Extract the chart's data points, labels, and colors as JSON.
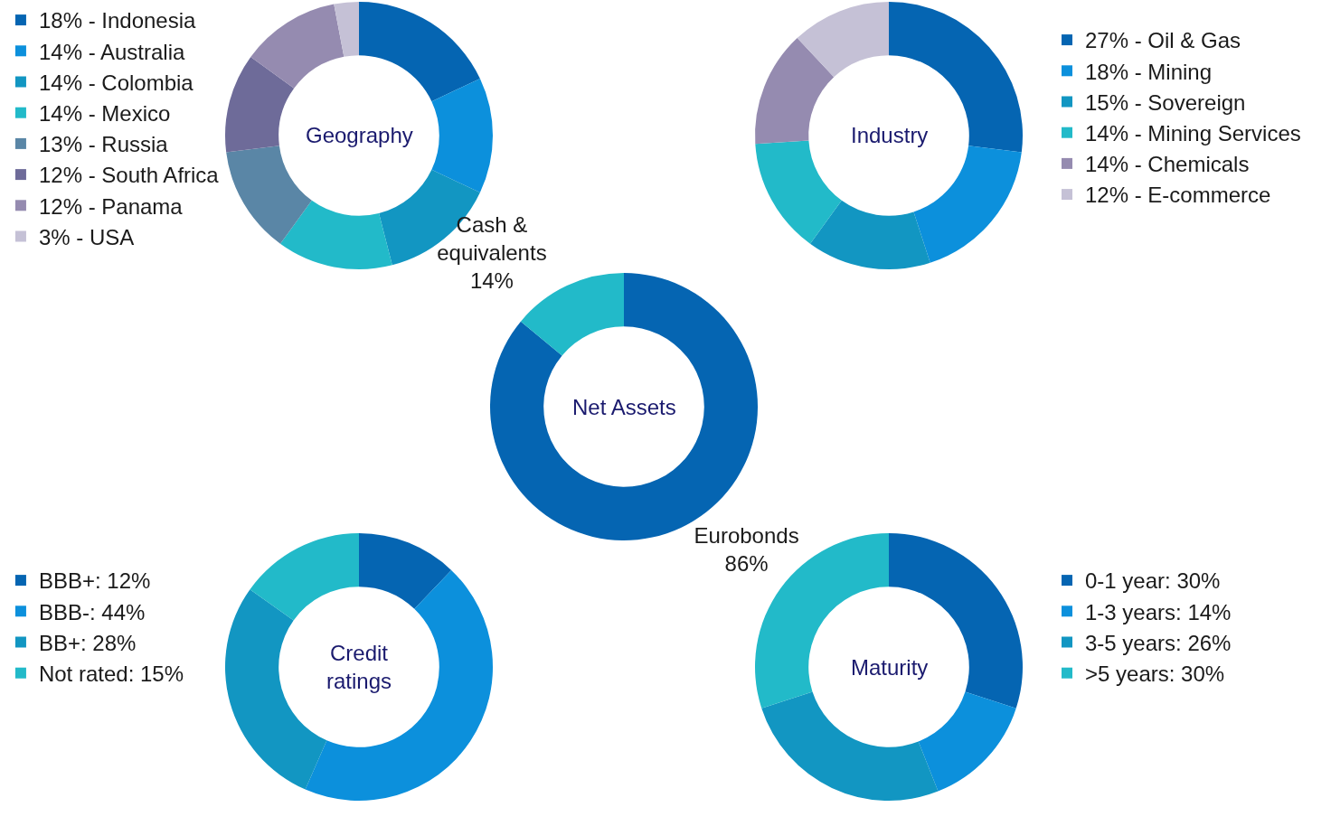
{
  "chart_data": [
    {
      "type": "donut",
      "title": "Geography",
      "legend": "left",
      "categories": [
        "18% - Indonesia",
        "14% - Australia",
        "14% - Colombia",
        "14% - Mexico",
        "13% - Russia",
        "12% - South Africa",
        "12% - Panama",
        "3% - USA"
      ],
      "values": [
        18,
        14,
        14,
        14,
        13,
        12,
        12,
        3
      ],
      "colors": [
        "#0565b2",
        "#0c90dc",
        "#1296c2",
        "#22bac9",
        "#5a86a6",
        "#6e6b99",
        "#958bb0",
        "#c5c1d6"
      ]
    },
    {
      "type": "donut",
      "title": "Industry",
      "legend": "right",
      "categories": [
        "27% - Oil & Gas",
        "18% - Mining",
        "15% - Sovereign",
        "14% - Mining Services",
        "14% - Chemicals",
        "12% - E-commerce"
      ],
      "values": [
        27,
        18,
        15,
        14,
        14,
        12
      ],
      "colors": [
        "#0565b2",
        "#0c90dc",
        "#1296c2",
        "#22bac9",
        "#958bb0",
        "#c5c1d6"
      ]
    },
    {
      "type": "donut",
      "title": "Net Assets",
      "legend": false,
      "categories": [
        "Eurobonds",
        "Cash & equivalents"
      ],
      "values": [
        86,
        14
      ],
      "value_labels": [
        "86%",
        "14%"
      ],
      "colors": [
        "#0565b2",
        "#22bac9"
      ]
    },
    {
      "type": "donut",
      "title": "Credit ratings",
      "legend": "left",
      "categories": [
        "BBB+: 12%",
        "BBB-: 44%",
        "BB+: 28%",
        "Not rated: 15%"
      ],
      "values": [
        12,
        44,
        28,
        15
      ],
      "colors": [
        "#0565b2",
        "#0c90dc",
        "#1296c2",
        "#22bac9"
      ]
    },
    {
      "type": "donut",
      "title": "Maturity",
      "legend": "right",
      "categories": [
        "0-1 year: 30%",
        "1-3 years: 14%",
        "3-5 years: 26%",
        ">5 years: 30%"
      ],
      "values": [
        30,
        14,
        26,
        30
      ],
      "colors": [
        "#0565b2",
        "#0c90dc",
        "#1296c2",
        "#22bac9"
      ]
    }
  ]
}
